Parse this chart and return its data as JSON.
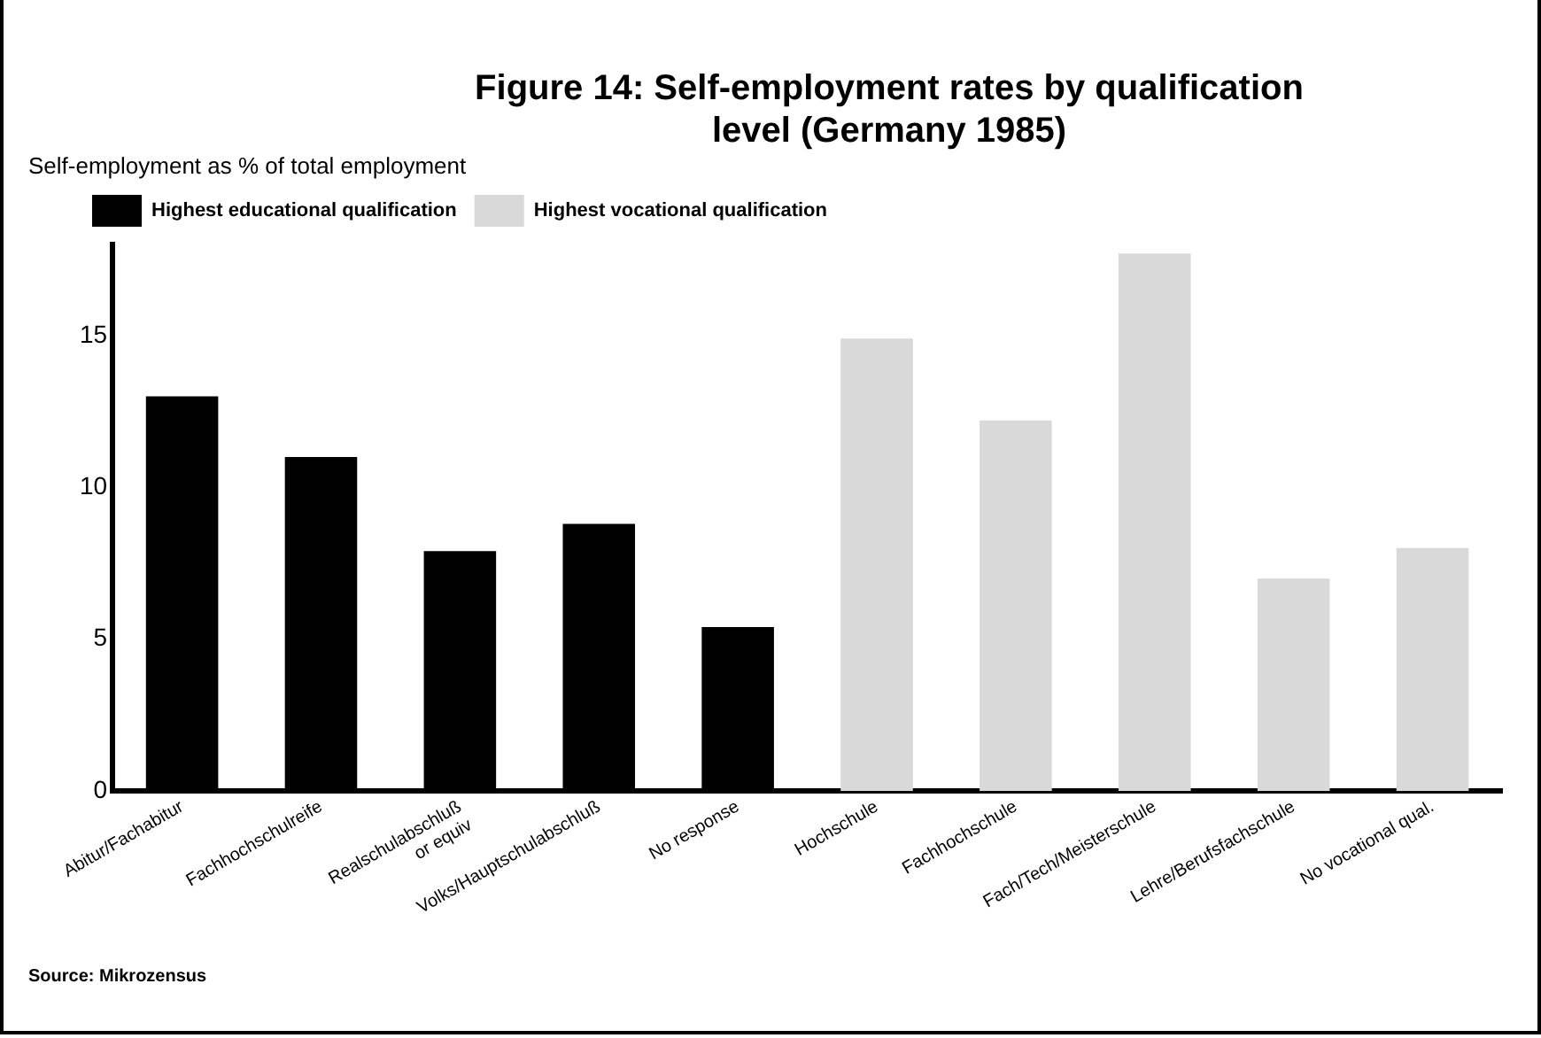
{
  "chart_data": {
    "type": "bar",
    "title": "Figure 14: Self-employment rates by qualification level (Germany 1985)",
    "ylabel": "Self-employment as % of total employment",
    "annotations": [
      "Source: Mikrozensus"
    ],
    "categories": [
      "Abitur/Fachabitur",
      "Fachhochschulreife",
      "Realschulabschluß\nor equiv",
      "Volks/Hauptschulabschluß",
      "No response",
      "Hochschule",
      "Fachhochschule",
      "Fach/Tech/Meisterschule",
      "Lehre/Berufsfachschule",
      "No vocational qual."
    ],
    "series": [
      {
        "name": "Highest educational qualification",
        "color": "#000000",
        "values": [
          13.0,
          11.0,
          7.9,
          8.8,
          5.4,
          null,
          null,
          null,
          null,
          null
        ]
      },
      {
        "name": "Highest vocational qualification",
        "color": "#d9d9d9",
        "values": [
          null,
          null,
          null,
          null,
          null,
          14.9,
          12.2,
          17.7,
          7.0,
          8.0
        ]
      }
    ],
    "ylim": [
      0,
      18
    ],
    "yticks": [
      0,
      5,
      10,
      15
    ],
    "grid": false,
    "legend": "top left"
  }
}
